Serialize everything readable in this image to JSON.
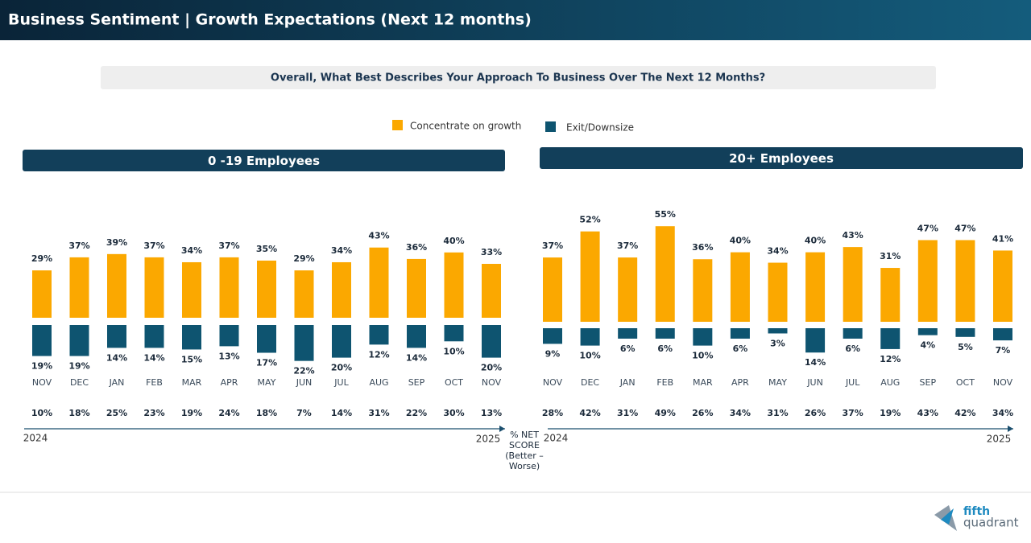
{
  "header": {
    "title": "Business Sentiment | Growth Expectations (Next 12 months)"
  },
  "question": "Overall, What Best Describes Your Approach To Business Over The Next 12 Months?",
  "net_score_label": "% NET SCORE (Better – Worse)",
  "logo": [
    "fifth",
    "quadrant"
  ],
  "chart_data": [
    {
      "type": "bar",
      "title": "0 -19 Employees",
      "categories": [
        "NOV",
        "DEC",
        "JAN",
        "FEB",
        "MAR",
        "APR",
        "MAY",
        "JUN",
        "JUL",
        "AUG",
        "SEP",
        "OCT",
        "NOV"
      ],
      "series": [
        {
          "name": "Concentrate on growth",
          "color": "#fba800",
          "values": [
            29,
            37,
            39,
            37,
            34,
            37,
            35,
            29,
            34,
            43,
            36,
            40,
            33
          ],
          "value_labels": [
            "29%",
            "37%",
            "39%",
            "37%",
            "34%",
            "37%",
            "35%",
            "29%",
            "34%",
            "43%",
            "36%",
            "40%",
            "33%"
          ]
        },
        {
          "name": "Exit/Downsize",
          "color": "#0e5470",
          "values": [
            19,
            19,
            14,
            14,
            15,
            13,
            17,
            22,
            20,
            12,
            14,
            10,
            20
          ],
          "value_labels": [
            "19%",
            "19%",
            "14%",
            "14%",
            "15%",
            "13%",
            "17%",
            "22%",
            "20%",
            "12%",
            "14%",
            "10%",
            "20%"
          ]
        }
      ],
      "net_score": {
        "values": [
          10,
          18,
          25,
          23,
          19,
          24,
          18,
          7,
          14,
          31,
          22,
          30,
          13
        ],
        "value_labels": [
          "10%",
          "18%",
          "25%",
          "23%",
          "19%",
          "24%",
          "18%",
          "7%",
          "14%",
          "31%",
          "22%",
          "30%",
          "13%"
        ]
      },
      "period": [
        "2024",
        "2025"
      ]
    },
    {
      "type": "bar",
      "title": "20+ Employees",
      "categories": [
        "NOV",
        "DEC",
        "JAN",
        "FEB",
        "MAR",
        "APR",
        "MAY",
        "JUN",
        "JUL",
        "AUG",
        "SEP",
        "OCT",
        "NOV"
      ],
      "series": [
        {
          "color": "#fba800",
          "values": [
            37,
            52,
            37,
            55,
            36,
            40,
            34,
            40,
            43,
            31,
            47,
            47,
            41
          ],
          "value_labels": [
            "37%",
            "52%",
            "37%",
            "55%",
            "36%",
            "40%",
            "34%",
            "40%",
            "43%",
            "31%",
            "47%",
            "47%",
            "41%"
          ]
        },
        {
          "color": "#0e5470",
          "values": [
            9,
            10,
            6,
            6,
            10,
            6,
            3,
            14,
            6,
            12,
            4,
            5,
            7
          ],
          "value_labels": [
            "9%",
            "10%",
            "6%",
            "6%",
            "10%",
            "6%",
            "3%",
            "14%",
            "6%",
            "12%",
            "4%",
            "5%",
            "7%"
          ]
        }
      ],
      "net_score": {
        "values": [
          28,
          42,
          31,
          49,
          26,
          34,
          31,
          26,
          37,
          19,
          43,
          42,
          34
        ],
        "value_labels": [
          "28%",
          "42%",
          "31%",
          "49%",
          "26%",
          "34%",
          "31%",
          "26%",
          "37%",
          "19%",
          "43%",
          "42%",
          "34%"
        ]
      },
      "period": [
        "2024",
        "2025"
      ]
    }
  ]
}
